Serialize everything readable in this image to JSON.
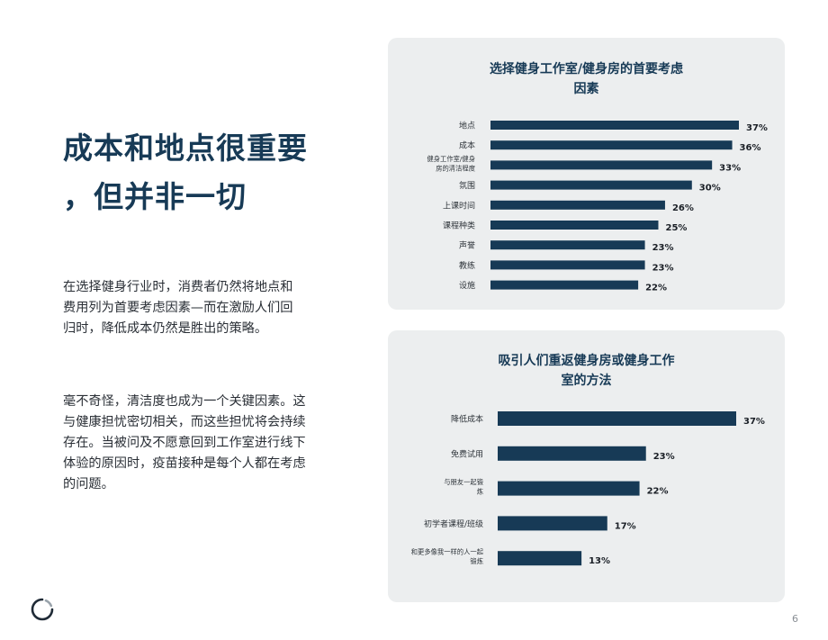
{
  "headline": [
    "成本和地点很重要",
    "，但并非一切"
  ],
  "paragraph1": [
    "在选择健身行业时，消费者仍然将地点和",
    "费用列为首要考虑因素—而在激励人们回",
    "归时，降低成本仍然是胜出的策略。"
  ],
  "paragraph2": [
    "毫不奇怪，清洁度也成为一个关键因素。这",
    "与健康担忧密切相关，而这些担忧将会持续",
    "存在。当被问及不愿意回到工作室进行线下",
    "体验的原因时，疫苗接种是每个人都在考虑",
    "的问题。"
  ],
  "page_number": "6",
  "colors": {
    "bar": "#173a56",
    "panel": "#eceeef",
    "headline": "#173a56"
  },
  "chart_data": [
    {
      "type": "bar",
      "orientation": "horizontal",
      "title": [
        "选择健身工作室/健身房的首要考虑",
        "因素"
      ],
      "categories": [
        [
          "地点"
        ],
        [
          "成本"
        ],
        [
          "健身工作室/健身",
          "房的清洁程度"
        ],
        [
          "氛围"
        ],
        [
          "上课时间"
        ],
        [
          "课程种类"
        ],
        [
          "声誉"
        ],
        [
          "教练"
        ],
        [
          "设施"
        ]
      ],
      "values": [
        37,
        36,
        33,
        30,
        26,
        25,
        23,
        23,
        22
      ],
      "value_labels": [
        "37%",
        "36%",
        "33%",
        "30%",
        "26%",
        "25%",
        "23%",
        "23%",
        "22%"
      ],
      "unit": "%"
    },
    {
      "type": "bar",
      "orientation": "horizontal",
      "title": [
        "吸引人们重返健身房或健身工作",
        "室的方法"
      ],
      "categories": [
        [
          "降低成本"
        ],
        [
          "免费试用"
        ],
        [
          "与朋友一起锻",
          "炼"
        ],
        [
          "初学者课程/班级"
        ],
        [
          "和更多像我一样的人一起",
          "锻炼"
        ]
      ],
      "values": [
        37,
        23,
        22,
        17,
        13
      ],
      "value_labels": [
        "37%",
        "23%",
        "22%",
        "17%",
        "13%"
      ],
      "unit": "%"
    }
  ]
}
